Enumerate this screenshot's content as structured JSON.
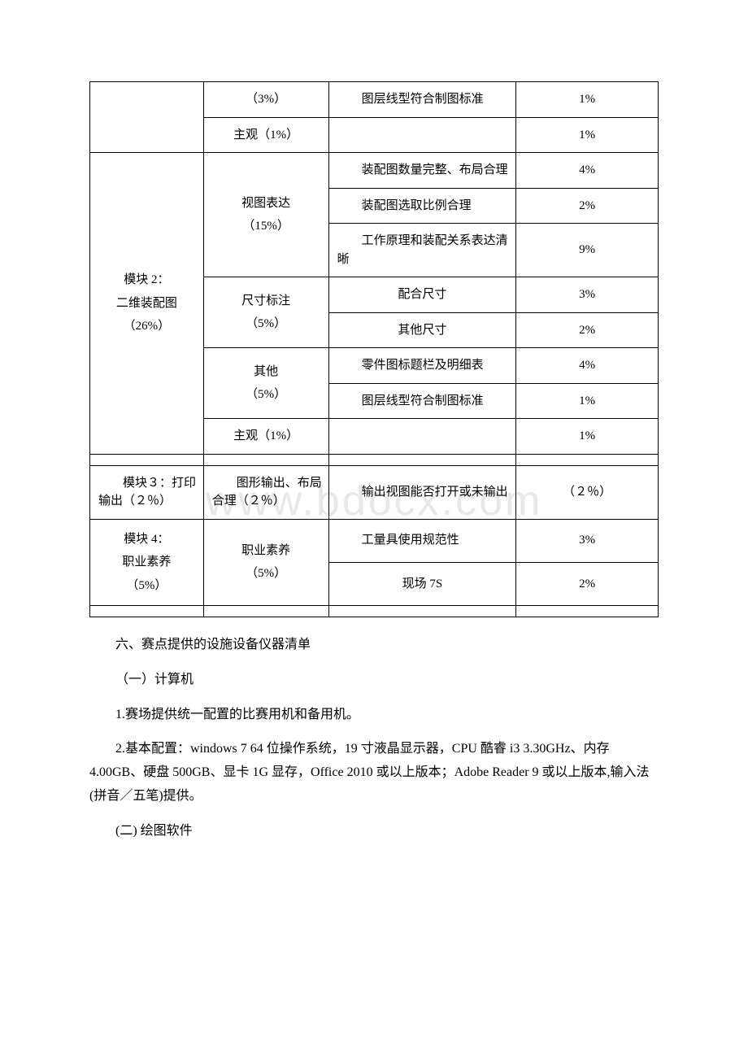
{
  "watermark": "www.bdocx.com",
  "table": {
    "row1": {
      "c2": "（3%）",
      "c3": "　　图层线型符合制图标准",
      "c4": "1%"
    },
    "row2": {
      "c2": "主观（1%）",
      "c4": "1%"
    },
    "module2": {
      "title": "模块 2：\n二维装配图\n（26%）",
      "sub1": {
        "label": "视图表达\n（15%）",
        "r1c3": "　　装配图数量完整、布局合理",
        "r1c4": "4%",
        "r2c3": "　　装配图选取比例合理",
        "r2c4": "2%",
        "r3c3": "　　工作原理和装配关系表达清晰",
        "r3c4": "9%"
      },
      "sub2": {
        "label": "尺寸标注\n（5%）",
        "r1c3": "配合尺寸",
        "r1c4": "3%",
        "r2c3": "其他尺寸",
        "r2c4": "2%"
      },
      "sub3": {
        "label": "其他\n（5%）",
        "r1c3": "　　零件图标题栏及明细表",
        "r1c4": "4%",
        "r2c3": "　　图层线型符合制图标准",
        "r2c4": "1%"
      },
      "sub4": {
        "label": "主观（1%）",
        "c4": "1%"
      }
    },
    "module3": {
      "c1": "　　模块３：打印输出（２％）",
      "c2": "　　图形输出、布局合理（２％）",
      "c3": "　　输出视图能否打开或未输出",
      "c4": "（２％）"
    },
    "module4": {
      "title": "模块 4：\n职业素养\n（5%）",
      "sub": {
        "label": "职业素养\n（5%）",
        "r1c3": "　　工量具使用规范性",
        "r1c4": "3%",
        "r2c3": "现场 7S",
        "r2c4": "2%"
      }
    }
  },
  "paragraphs": {
    "p1": "六、赛点提供的设施设备仪器清单",
    "p2": "（一）计算机",
    "p3": "1.赛场提供统一配置的比赛用机和备用机。",
    "p4": "2.基本配置：windows 7 64 位操作系统，19 寸液晶显示器，CPU 酷睿 i3 3.30GHz、内存 4.00GB、硬盘 500GB、显卡 1G 显存，Office 2010 或以上版本；Adobe Reader 9 或以上版本,输入法(拼音／五笔)提供。",
    "p5": "(二) 绘图软件"
  }
}
